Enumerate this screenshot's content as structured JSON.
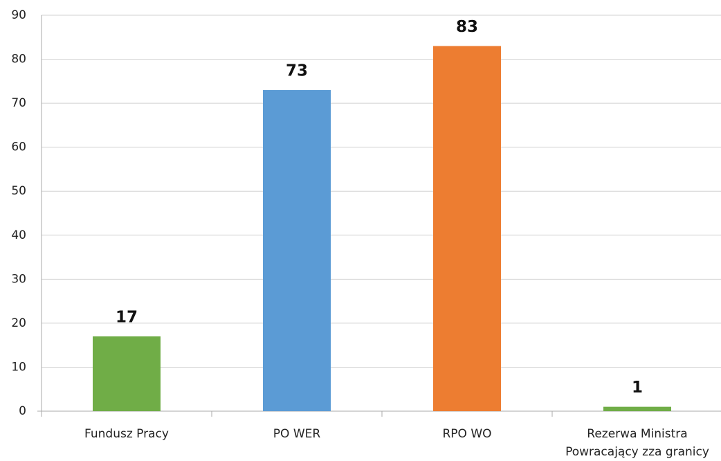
{
  "chart_data": {
    "type": "bar",
    "categories": [
      "Fundusz Pracy",
      "PO WER",
      "RPO WO",
      "Rezerwa Ministra\nPowracający zza granicy"
    ],
    "values": [
      17,
      73,
      83,
      1
    ],
    "colors": [
      "#70ad47",
      "#5b9bd5",
      "#ed7d31",
      "#70ad47"
    ],
    "ylim": [
      0,
      90
    ],
    "yticks": [
      0,
      10,
      20,
      30,
      40,
      50,
      60,
      70,
      80,
      90
    ],
    "grid": true
  }
}
